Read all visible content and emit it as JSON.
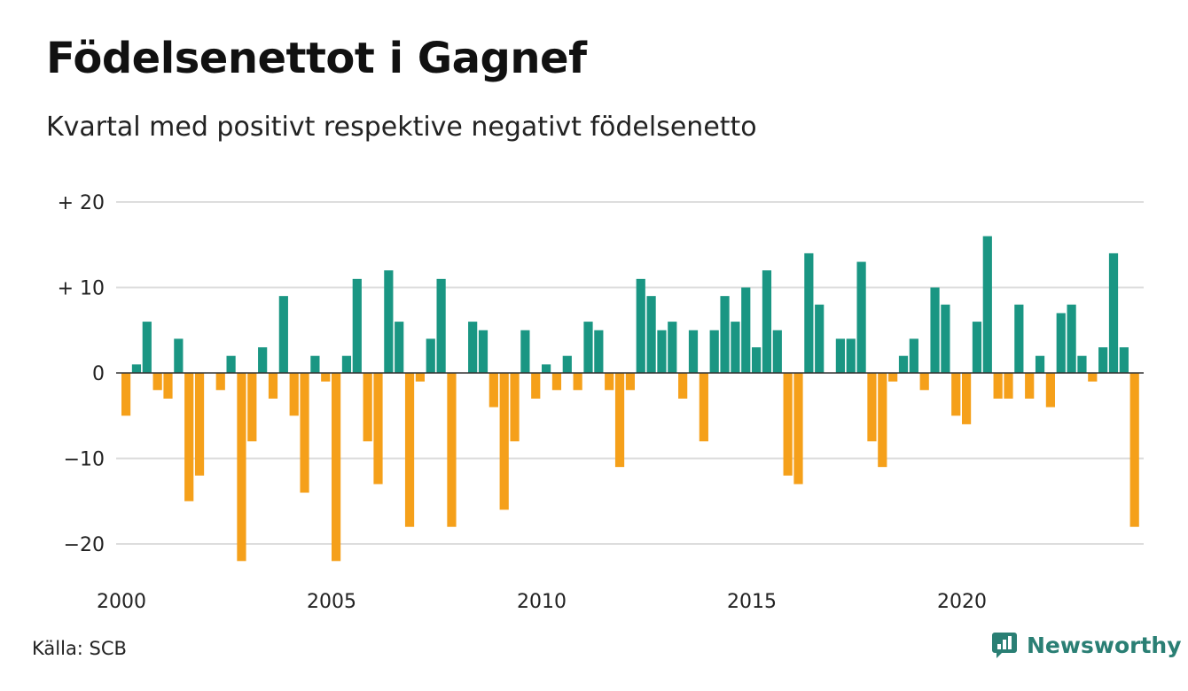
{
  "title": "Födelsenettot i Gagnef",
  "subtitle": "Kvartal med positivt respektive negativt födelsenetto",
  "source": "Källa: SCB",
  "brand": "Newsworthy",
  "colors": {
    "positive": "#1a9683",
    "negative": "#f5a01a",
    "grid": "#dddddd",
    "brand": "#2a7f74"
  },
  "icons": {
    "brand_logo": "newsworthy-logo-icon"
  },
  "chart_data": {
    "type": "bar",
    "start": "2000 Q1",
    "period": "quarter",
    "values": [
      -5,
      1,
      6,
      -2,
      -3,
      4,
      -15,
      -12,
      0,
      -2,
      2,
      -22,
      -8,
      3,
      -3,
      9,
      -5,
      -14,
      2,
      -1,
      -22,
      2,
      11,
      -8,
      -13,
      12,
      6,
      -18,
      -1,
      4,
      11,
      -18,
      0,
      6,
      5,
      -4,
      -16,
      -8,
      5,
      -3,
      1,
      -2,
      2,
      -2,
      6,
      5,
      -2,
      -11,
      -2,
      11,
      9,
      5,
      6,
      -3,
      5,
      -8,
      5,
      9,
      6,
      10,
      3,
      12,
      5,
      -12,
      -13,
      14,
      8,
      0,
      4,
      4,
      13,
      -8,
      -11,
      -1,
      2,
      4,
      -2,
      10,
      8,
      -5,
      -6,
      6,
      16,
      -3,
      -3,
      8,
      -3,
      2,
      -4,
      7,
      8,
      2,
      -1,
      3,
      14,
      3,
      -18
    ],
    "x_ticks": [
      {
        "label": "2000",
        "index": 0
      },
      {
        "label": "2005",
        "index": 20
      },
      {
        "label": "2010",
        "index": 40
      },
      {
        "label": "2015",
        "index": 60
      },
      {
        "label": "2020",
        "index": 80
      }
    ],
    "y_ticks": [
      {
        "label": "+ 20",
        "value": 20
      },
      {
        "label": "+ 10",
        "value": 10
      },
      {
        "label": "0",
        "value": 0
      },
      {
        "label": "−10",
        "value": -10
      },
      {
        "label": "−20",
        "value": -20
      }
    ],
    "ylim": [
      -22,
      20
    ],
    "grid": true
  }
}
